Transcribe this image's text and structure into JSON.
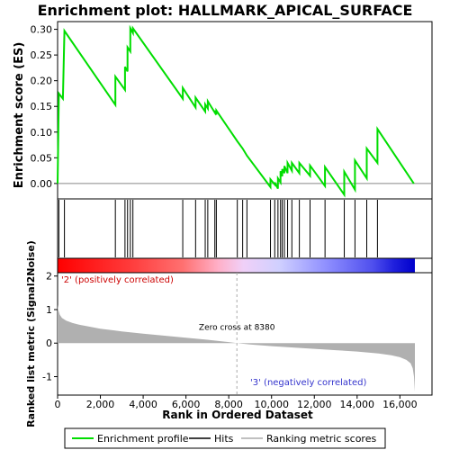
{
  "chart_data": {
    "type": "line",
    "title": "Enrichment plot: HALLMARK_APICAL_SURFACE",
    "top_panel": {
      "ylabel": "Enrichment score (ES)",
      "ylim": [
        -0.03,
        0.315
      ],
      "yticks": [
        "0.30",
        "0.25",
        "0.20",
        "0.15",
        "0.10",
        "0.05",
        "0.00"
      ],
      "ytick_values": [
        0.3,
        0.25,
        0.2,
        0.15,
        0.1,
        0.05,
        0.0
      ],
      "series": [
        {
          "name": "Enrichment profile",
          "x": [
            0,
            60,
            60,
            250,
            320,
            2700,
            2700,
            3150,
            3150,
            3270,
            3270,
            3400,
            3400,
            3520,
            3520,
            5850,
            5850,
            6450,
            6450,
            6900,
            6900,
            7020,
            7020,
            7350,
            7350,
            7420,
            7420,
            8400,
            8400,
            8650,
            8650,
            8850,
            8850,
            9950,
            9950,
            10150,
            10150,
            10300,
            10300,
            10420,
            10420,
            10500,
            10500,
            10600,
            10600,
            10750,
            10750,
            10950,
            10950,
            11300,
            11300,
            11800,
            11800,
            12500,
            12500,
            13400,
            13400,
            13900,
            13900,
            14450,
            14450,
            14950,
            14950,
            16650
          ],
          "y": [
            0.0,
            0.175,
            0.175,
            0.165,
            0.297,
            0.153,
            0.208,
            0.182,
            0.227,
            0.218,
            0.265,
            0.257,
            0.302,
            0.293,
            0.302,
            0.165,
            0.186,
            0.148,
            0.167,
            0.14,
            0.154,
            0.146,
            0.16,
            0.138,
            0.142,
            0.134,
            0.142,
            0.082,
            0.082,
            0.068,
            0.068,
            0.054,
            0.054,
            -0.007,
            0.008,
            -0.002,
            0.002,
            -0.01,
            0.01,
            0.002,
            0.024,
            0.014,
            0.028,
            0.02,
            0.034,
            0.02,
            0.04,
            0.025,
            0.04,
            0.02,
            0.04,
            0.015,
            0.035,
            -0.005,
            0.032,
            -0.022,
            0.023,
            -0.012,
            0.045,
            0.01,
            0.068,
            0.04,
            0.106,
            0.0
          ]
        }
      ]
    },
    "hits_panel": {
      "hits": [
        60,
        320,
        2700,
        3150,
        3270,
        3400,
        3520,
        5850,
        6450,
        6900,
        7020,
        7350,
        7420,
        8400,
        8650,
        8850,
        9950,
        10150,
        10300,
        10420,
        10500,
        10600,
        10750,
        10950,
        11300,
        11800,
        12500,
        13400,
        13900,
        14450,
        14950
      ]
    },
    "bottom_panel": {
      "xlabel": "Rank in Ordered Dataset",
      "ylabel": "Ranked list metric (Signal2Noise)",
      "ylim": [
        -1.55,
        2.1
      ],
      "yticks": [
        "2",
        "1",
        "0",
        "-1"
      ],
      "ytick_values": [
        2,
        1,
        0,
        -1
      ],
      "xlim": [
        0,
        17500
      ],
      "xticks": [
        "0",
        "2,000",
        "4,000",
        "6,000",
        "8,000",
        "10,000",
        "12,000",
        "14,000",
        "16,000"
      ],
      "xtick_values": [
        0,
        2000,
        4000,
        6000,
        8000,
        10000,
        12000,
        14000,
        16000
      ],
      "n_genes": 16700,
      "metric_curve": {
        "x": [
          0,
          30,
          100,
          200,
          400,
          700,
          1000,
          1500,
          2000,
          3000,
          4000,
          5000,
          6000,
          7000,
          8000,
          8380,
          9000,
          10000,
          11000,
          12000,
          13000,
          14000,
          15000,
          15600,
          16000,
          16300,
          16500,
          16600,
          16660,
          16700
        ],
        "y": [
          1.15,
          1.0,
          0.85,
          0.75,
          0.67,
          0.6,
          0.55,
          0.49,
          0.43,
          0.35,
          0.28,
          0.22,
          0.16,
          0.1,
          0.03,
          0.0,
          -0.04,
          -0.09,
          -0.13,
          -0.17,
          -0.21,
          -0.25,
          -0.31,
          -0.36,
          -0.42,
          -0.5,
          -0.6,
          -0.75,
          -1.0,
          -1.45
        ]
      },
      "zero_cross_text": "Zero cross at 8380",
      "zero_cross_x": 8380,
      "pos_label": "'2' (positively correlated)",
      "neg_label": "'3' (negatively correlated)"
    },
    "legend": {
      "entries": [
        "Enrichment profile",
        "Hits",
        "Ranking metric scores"
      ],
      "colors": [
        "#00dd00",
        "#000000",
        "#c0c0c0"
      ],
      "placement": "bottom"
    },
    "colors": {
      "profile": "#00dd00",
      "metric_fill": "#b0b0b0",
      "pos_color": "#ff0000",
      "neg_color": "#0000ff"
    }
  }
}
